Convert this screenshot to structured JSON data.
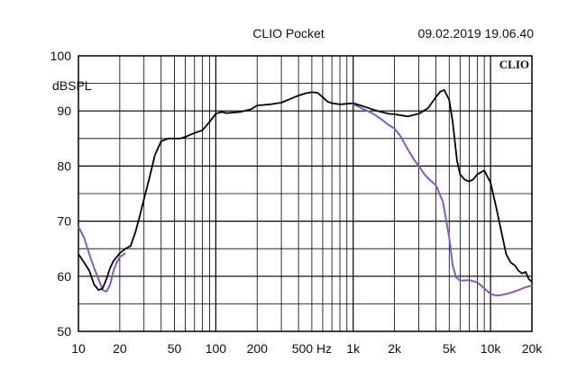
{
  "header": {
    "app_title": "CLIO Pocket",
    "timestamp": "09.02.2019 19.06.40",
    "logo": "CLIO"
  },
  "chart_data": {
    "type": "line",
    "title": "",
    "xlabel": "",
    "ylabel": "dBSPL",
    "x_scale": "log",
    "xlim": [
      10,
      20000
    ],
    "ylim": [
      50,
      100
    ],
    "grid": true,
    "x_ticks": [
      {
        "value": 10,
        "label": "10"
      },
      {
        "value": 20,
        "label": "20"
      },
      {
        "value": 50,
        "label": "50"
      },
      {
        "value": 100,
        "label": "100"
      },
      {
        "value": 200,
        "label": "200"
      },
      {
        "value": 500,
        "label": "500 Hz"
      },
      {
        "value": 1000,
        "label": "1k"
      },
      {
        "value": 2000,
        "label": "2k"
      },
      {
        "value": 5000,
        "label": "5k"
      },
      {
        "value": 10000,
        "label": "10k"
      },
      {
        "value": 20000,
        "label": "20k"
      }
    ],
    "y_ticks": [
      {
        "value": 50,
        "label": "50"
      },
      {
        "value": 60,
        "label": "60"
      },
      {
        "value": 70,
        "label": "70"
      },
      {
        "value": 80,
        "label": "80"
      },
      {
        "value": 90,
        "label": "90"
      },
      {
        "value": 100,
        "label": "100"
      }
    ],
    "series": [
      {
        "color": "#000000",
        "points": [
          [
            10,
            64
          ],
          [
            11,
            62.5
          ],
          [
            12,
            61
          ],
          [
            13,
            58.5
          ],
          [
            14,
            57.5
          ],
          [
            15,
            57.8
          ],
          [
            16,
            59.5
          ],
          [
            17,
            61.5
          ],
          [
            18,
            62.8
          ],
          [
            19,
            63.5
          ],
          [
            20,
            64.2
          ],
          [
            22,
            65
          ],
          [
            24,
            65.5
          ],
          [
            26,
            68
          ],
          [
            28,
            71
          ],
          [
            30,
            74
          ],
          [
            33,
            78
          ],
          [
            36,
            82
          ],
          [
            40,
            84.5
          ],
          [
            45,
            85
          ],
          [
            50,
            85
          ],
          [
            55,
            85
          ],
          [
            60,
            85.3
          ],
          [
            70,
            86
          ],
          [
            80,
            86.5
          ],
          [
            90,
            88
          ],
          [
            100,
            89.5
          ],
          [
            110,
            89.8
          ],
          [
            120,
            89.6
          ],
          [
            150,
            89.8
          ],
          [
            180,
            90.3
          ],
          [
            200,
            91
          ],
          [
            250,
            91.2
          ],
          [
            300,
            91.5
          ],
          [
            350,
            92.2
          ],
          [
            400,
            92.8
          ],
          [
            450,
            93.2
          ],
          [
            500,
            93.4
          ],
          [
            550,
            93.3
          ],
          [
            600,
            92.5
          ],
          [
            650,
            91.7
          ],
          [
            700,
            91.4
          ],
          [
            800,
            91.2
          ],
          [
            900,
            91.3
          ],
          [
            1000,
            91.4
          ],
          [
            1200,
            90.8
          ],
          [
            1500,
            90
          ],
          [
            1800,
            89.5
          ],
          [
            2000,
            89.4
          ],
          [
            2500,
            89
          ],
          [
            3000,
            89.5
          ],
          [
            3500,
            90.5
          ],
          [
            4000,
            92.5
          ],
          [
            4300,
            93.5
          ],
          [
            4600,
            93.8
          ],
          [
            5000,
            92
          ],
          [
            5300,
            88
          ],
          [
            5700,
            81
          ],
          [
            6000,
            78.5
          ],
          [
            6500,
            77.5
          ],
          [
            7000,
            77.2
          ],
          [
            7500,
            77.6
          ],
          [
            8000,
            78.5
          ],
          [
            9000,
            79.2
          ],
          [
            10000,
            77
          ],
          [
            11000,
            72.5
          ],
          [
            12000,
            68
          ],
          [
            13000,
            64
          ],
          [
            14000,
            62.5
          ],
          [
            15000,
            62
          ],
          [
            16000,
            61
          ],
          [
            17000,
            60.5
          ],
          [
            18000,
            60.8
          ],
          [
            19000,
            59.5
          ],
          [
            20000,
            59
          ]
        ]
      },
      {
        "color": "#8a58c2",
        "points": [
          [
            10,
            69
          ],
          [
            11,
            67
          ],
          [
            12,
            64
          ],
          [
            13,
            61.5
          ],
          [
            14,
            59.5
          ],
          [
            15,
            57.5
          ],
          [
            16,
            57.2
          ],
          [
            17,
            58.5
          ],
          [
            18,
            61
          ],
          [
            19,
            62.5
          ],
          [
            20,
            63.5
          ],
          [
            22,
            64.2
          ],
          [
            1000,
            91.2
          ],
          [
            1200,
            90.3
          ],
          [
            1400,
            89.5
          ],
          [
            1600,
            88.5
          ],
          [
            1800,
            87.5
          ],
          [
            2000,
            86.8
          ],
          [
            2200,
            85.5
          ],
          [
            2500,
            83
          ],
          [
            2800,
            81
          ],
          [
            3000,
            80
          ],
          [
            3300,
            78.5
          ],
          [
            3600,
            77.5
          ],
          [
            4000,
            76.5
          ],
          [
            4500,
            73.5
          ],
          [
            5000,
            67
          ],
          [
            5300,
            62
          ],
          [
            5600,
            59.8
          ],
          [
            6000,
            59.2
          ],
          [
            7000,
            59.3
          ],
          [
            8000,
            58.9
          ],
          [
            9000,
            57.8
          ],
          [
            10000,
            56.8
          ],
          [
            11000,
            56.5
          ],
          [
            12000,
            56.6
          ],
          [
            14000,
            57
          ],
          [
            16000,
            57.5
          ],
          [
            18000,
            58
          ],
          [
            20000,
            58.3
          ]
        ]
      }
    ]
  }
}
